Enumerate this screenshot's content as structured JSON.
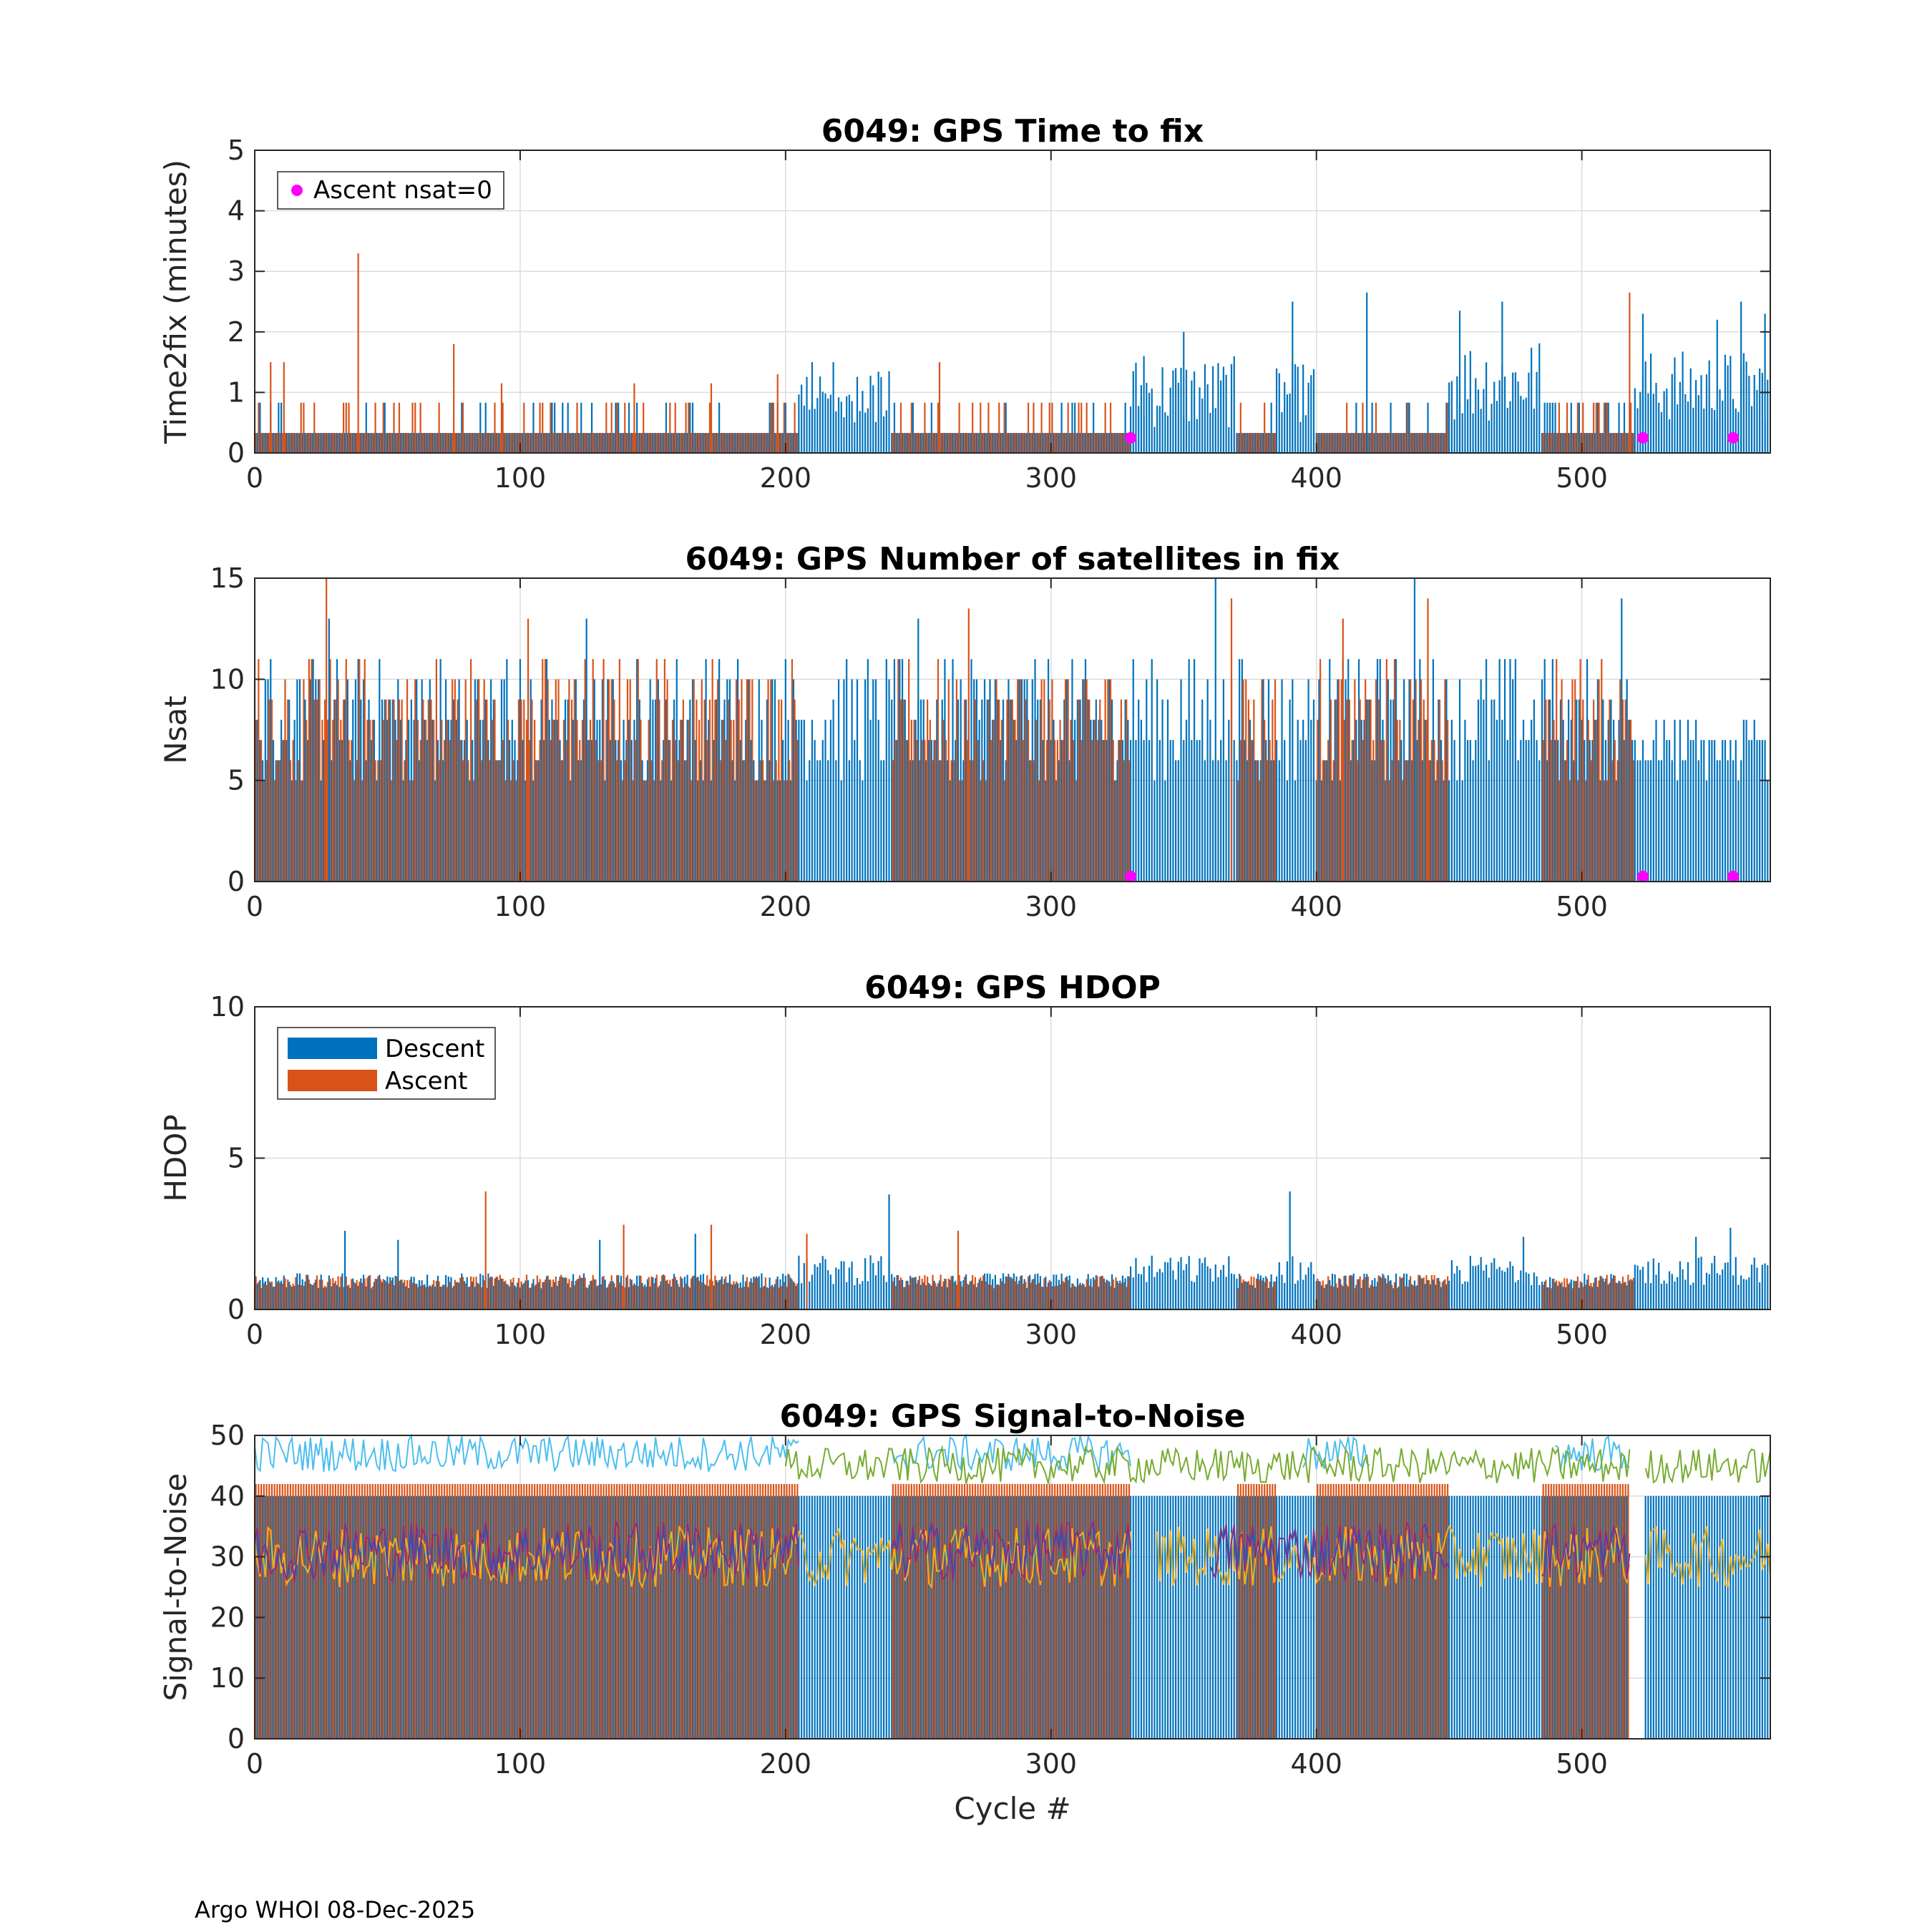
{
  "float_id": "6049",
  "footer": "Argo WHOI 08-Dec-2025",
  "colors": {
    "descent": "#0072BD",
    "ascent": "#D95319",
    "marker": "#FF00FF",
    "snr_cyan": "#4DBEEE",
    "snr_green": "#77AC30",
    "snr_yellow": "#EDB120",
    "snr_purple": "#7E2F8E"
  },
  "chart_data": [
    {
      "type": "bar",
      "title": "6049: GPS Time to fix",
      "xlabel": "",
      "ylabel": "Time2fix (minutes)",
      "xlim": [
        0,
        571
      ],
      "ylim": [
        0,
        5
      ],
      "xticks": [
        "0",
        "100",
        "200",
        "300",
        "400",
        "500"
      ],
      "yticks": [
        "0",
        "1",
        "2",
        "3",
        "4",
        "5"
      ],
      "legend": {
        "position": "top-left",
        "entries": [
          {
            "label": "Ascent nsat=0",
            "marker": "dot"
          }
        ]
      },
      "typical_descent_value": 0.33,
      "spikes": [
        {
          "series": "ascent",
          "x": 6,
          "y": 1.5
        },
        {
          "series": "ascent",
          "x": 11,
          "y": 1.5
        },
        {
          "series": "ascent",
          "x": 39,
          "y": 3.3
        },
        {
          "series": "ascent",
          "x": 75,
          "y": 1.8
        },
        {
          "series": "ascent",
          "x": 93,
          "y": 1.15
        },
        {
          "series": "ascent",
          "x": 143,
          "y": 1.15
        },
        {
          "series": "ascent",
          "x": 172,
          "y": 1.15
        },
        {
          "series": "ascent",
          "x": 197,
          "y": 1.3
        },
        {
          "series": "descent",
          "x": 210,
          "y": 1.5
        },
        {
          "series": "descent",
          "x": 218,
          "y": 1.5
        },
        {
          "series": "ascent",
          "x": 258,
          "y": 1.5
        },
        {
          "series": "descent",
          "x": 335,
          "y": 1.6
        },
        {
          "series": "descent",
          "x": 350,
          "y": 2.0
        },
        {
          "series": "descent",
          "x": 391,
          "y": 2.5
        },
        {
          "series": "descent",
          "x": 419,
          "y": 2.65
        },
        {
          "series": "descent",
          "x": 454,
          "y": 2.35
        },
        {
          "series": "descent",
          "x": 470,
          "y": 2.5
        },
        {
          "series": "ascent",
          "x": 518,
          "y": 2.65
        },
        {
          "series": "descent",
          "x": 523,
          "y": 2.3
        },
        {
          "series": "descent",
          "x": 551,
          "y": 2.2
        },
        {
          "series": "descent",
          "x": 560,
          "y": 2.5
        },
        {
          "series": "descent",
          "x": 569,
          "y": 2.3
        }
      ],
      "markers": [
        {
          "x": 330,
          "y": 0.25
        },
        {
          "x": 523,
          "y": 0.25
        },
        {
          "x": 557,
          "y": 0.25
        }
      ]
    },
    {
      "type": "bar",
      "title": "6049: GPS Number of satellites in fix",
      "xlabel": "",
      "ylabel": "Nsat",
      "xlim": [
        0,
        571
      ],
      "ylim": [
        0,
        15
      ],
      "xticks": [
        "0",
        "100",
        "200",
        "300",
        "400",
        "500"
      ],
      "yticks": [
        "0",
        "5",
        "10",
        "15"
      ],
      "typical_value_range": [
        5,
        11
      ],
      "spikes": [
        {
          "series": "ascent",
          "x": 27,
          "y": 15
        },
        {
          "series": "descent",
          "x": 28,
          "y": 13
        },
        {
          "series": "ascent",
          "x": 103,
          "y": 13
        },
        {
          "series": "descent",
          "x": 125,
          "y": 13
        },
        {
          "series": "descent",
          "x": 250,
          "y": 13
        },
        {
          "series": "ascent",
          "x": 269,
          "y": 13.5
        },
        {
          "series": "descent",
          "x": 362,
          "y": 15
        },
        {
          "series": "ascent",
          "x": 368,
          "y": 14
        },
        {
          "series": "ascent",
          "x": 410,
          "y": 13
        },
        {
          "series": "descent",
          "x": 437,
          "y": 15
        },
        {
          "series": "ascent",
          "x": 442,
          "y": 14
        },
        {
          "series": "descent",
          "x": 515,
          "y": 14
        }
      ],
      "markers": [
        {
          "x": 330,
          "y": 0.25
        },
        {
          "x": 523,
          "y": 0.25
        },
        {
          "x": 557,
          "y": 0.25
        }
      ]
    },
    {
      "type": "bar",
      "title": "6049: GPS HDOP",
      "xlabel": "",
      "ylabel": "HDOP",
      "xlim": [
        0,
        571
      ],
      "ylim": [
        0,
        10
      ],
      "xticks": [
        "0",
        "100",
        "200",
        "300",
        "400",
        "500"
      ],
      "yticks": [
        "0",
        "5",
        "10"
      ],
      "legend": {
        "position": "top-left",
        "entries": [
          {
            "label": "Descent",
            "series": "descent"
          },
          {
            "label": "Ascent",
            "series": "ascent"
          }
        ]
      },
      "typical_value_range": [
        0.7,
        1.3
      ],
      "spikes": [
        {
          "series": "descent",
          "x": 34,
          "y": 2.6
        },
        {
          "series": "descent",
          "x": 54,
          "y": 2.3
        },
        {
          "series": "ascent",
          "x": 87,
          "y": 3.9
        },
        {
          "series": "descent",
          "x": 130,
          "y": 2.3
        },
        {
          "series": "ascent",
          "x": 139,
          "y": 2.8
        },
        {
          "series": "descent",
          "x": 166,
          "y": 2.5
        },
        {
          "series": "ascent",
          "x": 172,
          "y": 2.8
        },
        {
          "series": "ascent",
          "x": 208,
          "y": 2.5
        },
        {
          "series": "descent",
          "x": 239,
          "y": 3.8
        },
        {
          "series": "ascent",
          "x": 265,
          "y": 2.6
        },
        {
          "series": "descent",
          "x": 390,
          "y": 3.9
        },
        {
          "series": "descent",
          "x": 478,
          "y": 2.4
        },
        {
          "series": "descent",
          "x": 556,
          "y": 2.7
        },
        {
          "series": "descent",
          "x": 543,
          "y": 2.4
        }
      ]
    },
    {
      "type": "line",
      "title": "6049: GPS Signal-to-Noise",
      "xlabel": "Cycle #",
      "ylabel": "Signal-to-Noise",
      "xlim": [
        0,
        571
      ],
      "ylim": [
        0,
        50
      ],
      "xticks": [
        "0",
        "100",
        "200",
        "300",
        "400",
        "500"
      ],
      "yticks": [
        "0",
        "10",
        "20",
        "30",
        "40",
        "50"
      ],
      "bars": {
        "descent_max": 40,
        "ascent_max": 42
      },
      "series": [
        {
          "name": "max (cyan)",
          "mean": 47,
          "ranges": [
            [
              0,
              205
            ],
            [
              240,
              330
            ],
            [
              395,
              420
            ],
            [
              490,
              518
            ]
          ]
        },
        {
          "name": "max (green)",
          "mean": 45,
          "ranges": [
            [
              200,
              518
            ],
            [
              524,
              571
            ]
          ]
        },
        {
          "name": "mean (yellow)",
          "mean": 30,
          "ranges": [
            [
              0,
              330
            ],
            [
              340,
              518
            ],
            [
              524,
              571
            ]
          ]
        },
        {
          "name": "mean (purple)",
          "mean": 31,
          "ranges": [
            [
              0,
              205
            ],
            [
              240,
              330
            ],
            [
              360,
              450
            ],
            [
              485,
              518
            ]
          ]
        }
      ]
    }
  ]
}
